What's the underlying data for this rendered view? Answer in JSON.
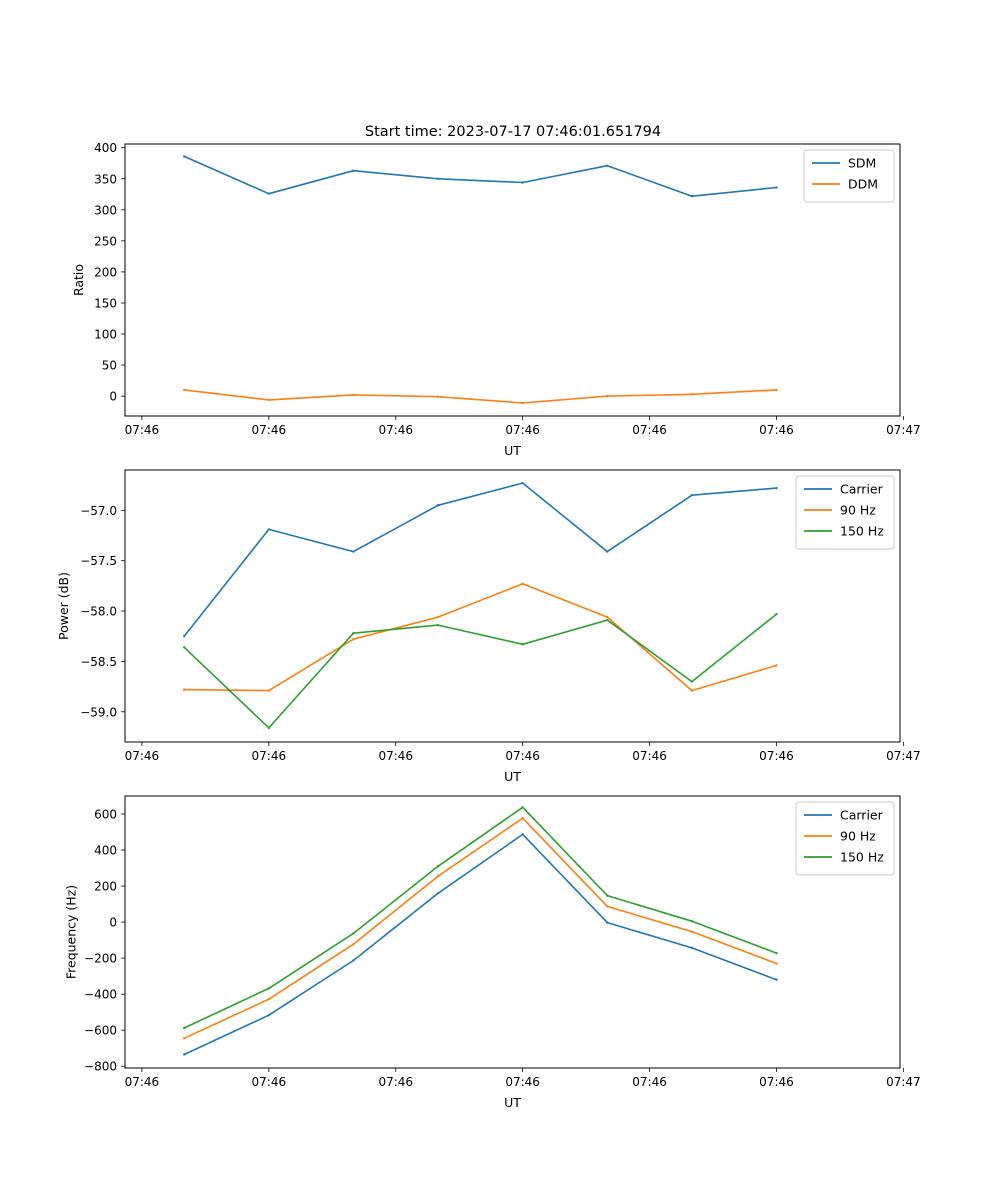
{
  "figure_title": "Start time: 2023-07-17 07:46:01.651794",
  "chart_data": [
    {
      "type": "line",
      "title": "Start time: 2023-07-17 07:46:01.651794",
      "xlabel": "UT",
      "ylabel": "Ratio",
      "x": [
        1,
        2,
        3,
        4,
        5,
        6,
        7,
        8
      ],
      "xlim": [
        0.3,
        9.46
      ],
      "xticks": [
        0.5,
        2,
        3.5,
        5,
        6.5,
        8,
        9.5
      ],
      "xtick_labels": [
        "07:46",
        "07:46",
        "07:46",
        "07:46",
        "07:46",
        "07:46",
        "07:47"
      ],
      "ylim": [
        -32,
        406
      ],
      "yticks": [
        0,
        50,
        100,
        150,
        200,
        250,
        300,
        350,
        400
      ],
      "ytick_labels": [
        "0",
        "50",
        "100",
        "150",
        "200",
        "250",
        "300",
        "350",
        "400"
      ],
      "legend": "top-right",
      "series": [
        {
          "name": "SDM",
          "color": "#1f77b4",
          "values": [
            386,
            326,
            363,
            350,
            344,
            371,
            322,
            336
          ]
        },
        {
          "name": "DDM",
          "color": "#ff7f0e",
          "values": [
            10,
            -6,
            2,
            -1,
            -11,
            0,
            3,
            10
          ]
        }
      ]
    },
    {
      "type": "line",
      "title": "",
      "xlabel": "UT",
      "ylabel": "Power (dB)",
      "x": [
        1,
        2,
        3,
        4,
        5,
        6,
        7,
        8
      ],
      "xlim": [
        0.3,
        9.46
      ],
      "xticks": [
        0.5,
        2,
        3.5,
        5,
        6.5,
        8,
        9.5
      ],
      "xtick_labels": [
        "07:46",
        "07:46",
        "07:46",
        "07:46",
        "07:46",
        "07:46",
        "07:47"
      ],
      "ylim": [
        -59.3,
        -56.6
      ],
      "yticks": [
        -59.0,
        -58.5,
        -58.0,
        -57.5,
        -57.0
      ],
      "ytick_labels": [
        "−59.0",
        "−58.5",
        "−58.0",
        "−57.5",
        "−57.0"
      ],
      "legend": "top-right",
      "series": [
        {
          "name": "Carrier",
          "color": "#1f77b4",
          "values": [
            -58.25,
            -57.19,
            -57.41,
            -56.95,
            -56.73,
            -57.41,
            -56.85,
            -56.78
          ]
        },
        {
          "name": "90 Hz",
          "color": "#ff7f0e",
          "values": [
            -58.78,
            -58.79,
            -58.28,
            -58.06,
            -57.73,
            -58.06,
            -58.79,
            -58.54
          ]
        },
        {
          "name": "150 Hz",
          "color": "#2ca02c",
          "values": [
            -58.36,
            -59.16,
            -58.22,
            -58.14,
            -58.33,
            -58.09,
            -58.7,
            -58.03
          ]
        }
      ]
    },
    {
      "type": "line",
      "title": "",
      "xlabel": "UT",
      "ylabel": "Frequency (Hz)",
      "x": [
        1,
        2,
        3,
        4,
        5,
        6,
        7,
        8
      ],
      "xlim": [
        0.3,
        9.46
      ],
      "xticks": [
        0.5,
        2,
        3.5,
        5,
        6.5,
        8,
        9.5
      ],
      "xtick_labels": [
        "07:46",
        "07:46",
        "07:46",
        "07:46",
        "07:46",
        "07:46",
        "07:47"
      ],
      "ylim": [
        -810,
        700
      ],
      "yticks": [
        -800,
        -600,
        -400,
        -200,
        0,
        200,
        400,
        600
      ],
      "ytick_labels": [
        "−800",
        "−600",
        "−400",
        "−200",
        "0",
        "200",
        "400",
        "600"
      ],
      "legend": "top-right",
      "series": [
        {
          "name": "Carrier",
          "color": "#1f77b4",
          "values": [
            -735,
            -517,
            -213,
            160,
            487,
            -3,
            -143,
            -320
          ]
        },
        {
          "name": "90 Hz",
          "color": "#ff7f0e",
          "values": [
            -645,
            -428,
            -123,
            255,
            577,
            87,
            -53,
            -230
          ]
        },
        {
          "name": "150 Hz",
          "color": "#2ca02c",
          "values": [
            -588,
            -368,
            -63,
            310,
            637,
            147,
            5,
            -172
          ]
        }
      ]
    }
  ]
}
